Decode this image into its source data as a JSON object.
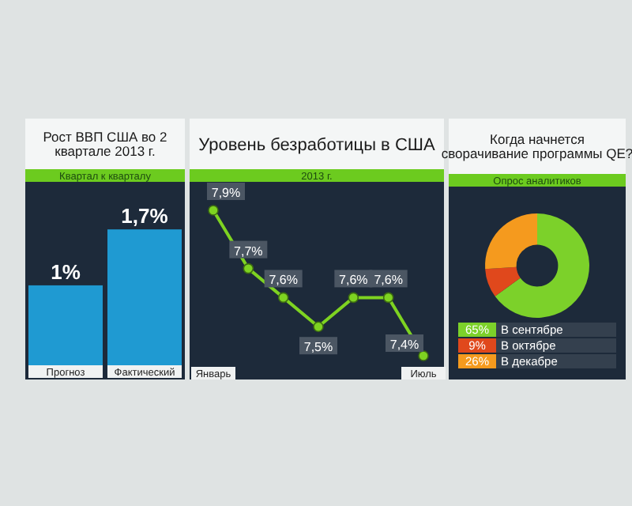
{
  "chart_data": [
    {
      "type": "bar",
      "title": "Рост ВВП США во 2 квартале 2013 г.",
      "subtitle": "Квартал к кварталу",
      "categories": [
        "Прогноз",
        "Фактический"
      ],
      "values": [
        1,
        1.7
      ],
      "value_labels": [
        "1%",
        "1,7%"
      ],
      "color": "#1f9ad2"
    },
    {
      "type": "line",
      "title": "Уровень безработицы в США",
      "subtitle": "2013 г.",
      "categories": [
        "Январь",
        null,
        null,
        null,
        null,
        null,
        "Июль"
      ],
      "values": [
        7.9,
        7.7,
        7.6,
        7.5,
        7.6,
        7.6,
        7.4
      ],
      "value_labels": [
        "7,9%",
        "7,7%",
        "7,6%",
        "7,5%",
        "7,6%",
        "7,6%",
        "7,4%"
      ],
      "color": "#7ed321",
      "marker": "circle"
    },
    {
      "type": "donut",
      "title": "Когда начнется сворачивание программы QE?",
      "subtitle": "Опрос аналитиков",
      "categories": [
        "В сентябре",
        "В октябре",
        "В декабре"
      ],
      "values": [
        65,
        9,
        26
      ],
      "value_labels": [
        "65%",
        "9%",
        "26%"
      ],
      "colors": [
        "#7cd12a",
        "#e0481c",
        "#f59a1e"
      ],
      "legend": "bottom"
    }
  ]
}
